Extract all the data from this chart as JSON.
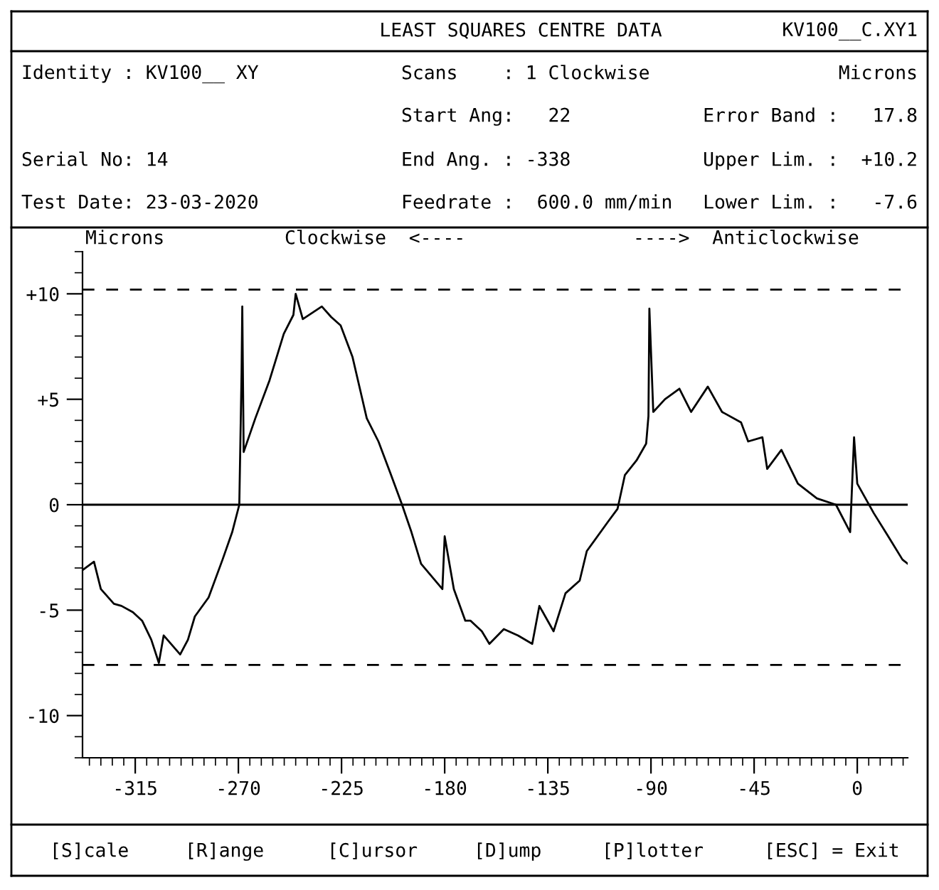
{
  "chart_data": {
    "type": "line",
    "title": "LEAST SQUARES CENTRE DATA",
    "ylabel": "Microns",
    "annotations": [
      "KV100__C.XY1",
      "Identity : KV100__ XY",
      "Scans    : 1 Clockwise",
      "Microns",
      "Start Ang:   22",
      "Error Band :   17.8",
      "Serial No: 14",
      "End Ang. : -338",
      "Upper Lim. :  +10.2",
      "Test Date: 23-03-2020",
      "Feedrate :  600.0 mm/min",
      "Lower Lim. :   -7.6",
      "Clockwise  <----",
      "---->  Anticlockwise",
      "[S]cale",
      "[R]ange",
      "[C]ursor",
      "[D]ump",
      "[P]lotter",
      "[ESC] = Exit"
    ],
    "series": [
      {
        "color": "#000000",
        "x": [
          -338,
          -333,
          -330,
          -324.3,
          -321,
          -316,
          -312,
          -308,
          -304.7,
          -302.6,
          -295.4,
          -292,
          -289,
          -283,
          -276.9,
          -272.7,
          -269.6,
          -268.6,
          -268.3,
          -267.7,
          -262.6,
          -256.4,
          -250.2,
          -246,
          -245,
          -241.9,
          -233.6,
          -229.5,
          -225.4,
          -220.2,
          -214,
          -208.9,
          -203.7,
          -198.6,
          -194.5,
          -190.3,
          -181,
          -180,
          -176,
          -171,
          -168.7,
          -163.8,
          -160.5,
          -154.2,
          -148,
          -141.8,
          -138.7,
          -132.5,
          -127.3,
          -121.1,
          -118,
          -108.7,
          -104.6,
          -101.4,
          -96.3,
          -92.1,
          -91.1,
          -90.7,
          -89,
          -83.9,
          -77.6,
          -72.5,
          -65.2,
          -59,
          -50.7,
          -47.6,
          -41.4,
          -39.3,
          -33.1,
          -25.9,
          -17.6,
          -9.3,
          -3.1,
          -1.4,
          0,
          7.2,
          13.5,
          19.7,
          22
        ],
        "values": [
          -3.1,
          -2.7,
          -4.0,
          -4.7,
          -4.8,
          -5.1,
          -5.5,
          -6.4,
          -7.5,
          -6.2,
          -7.1,
          -6.4,
          -5.3,
          -4.4,
          -2.6,
          -1.3,
          0,
          6.3,
          9.4,
          2.5,
          4.1,
          5.9,
          8.1,
          9.0,
          10.0,
          8.8,
          9.4,
          8.9,
          8.5,
          7.0,
          4.1,
          3.0,
          1.5,
          0,
          -1.3,
          -2.8,
          -4.0,
          -1.5,
          -4.0,
          -5.5,
          -5.5,
          -6.0,
          -6.6,
          -5.9,
          -6.2,
          -6.6,
          -4.8,
          -6.0,
          -4.2,
          -3.6,
          -2.2,
          -0.8,
          -0.2,
          1.4,
          2.1,
          2.9,
          4.2,
          9.3,
          4.4,
          5.0,
          5.5,
          4.4,
          5.6,
          4.4,
          3.9,
          3.0,
          3.2,
          1.7,
          2.6,
          1.0,
          0.3,
          0,
          -1.3,
          3.2,
          1.0,
          -0.4,
          -1.5,
          -2.6,
          -2.8
        ]
      }
    ],
    "xlim": [
      -338,
      22
    ],
    "xticks": [
      -315,
      -270,
      -225,
      -180,
      -135,
      -90,
      -45,
      0
    ],
    "ylim": [
      -12,
      12
    ],
    "yticks": [
      {
        "value": -10,
        "label": "-10"
      },
      {
        "value": -5,
        "label": "-5"
      },
      0,
      {
        "value": 5,
        "label": "+5"
      },
      {
        "value": 10,
        "label": "+10"
      }
    ],
    "ref_lines": [
      {
        "axis": "y",
        "value": 10.2,
        "label": null,
        "line_style": "dashed",
        "color": "#000000"
      },
      {
        "axis": "y",
        "value": -7.6,
        "label": null,
        "line_style": "dashed",
        "color": "#000000"
      },
      {
        "axis": "y",
        "value": 0,
        "label": null,
        "line_style": "solid",
        "color": "#000000"
      }
    ],
    "grid": false,
    "legend": false,
    "marker": "none",
    "line_style": "solid"
  }
}
